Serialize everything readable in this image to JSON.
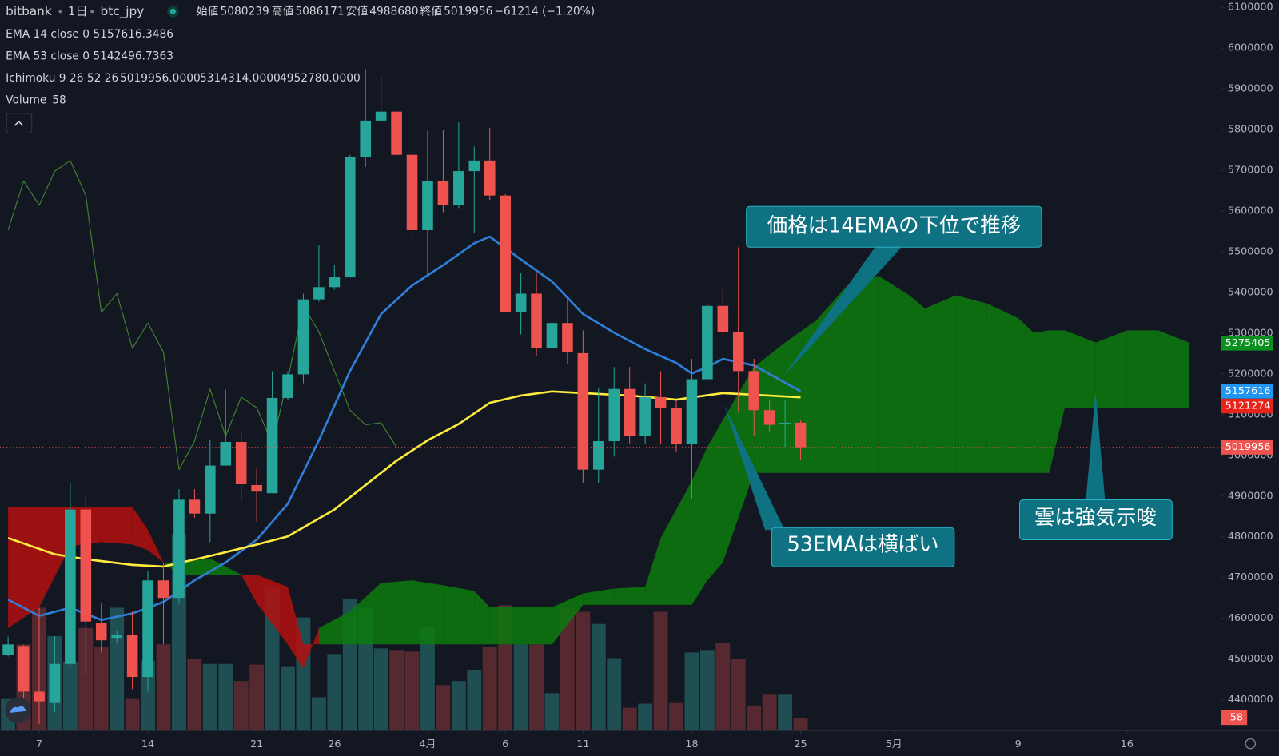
{
  "header": {
    "exchange": "bitbank",
    "interval": "1日",
    "symbol": "btc_jpy",
    "open_label": "始値",
    "open": 5080239,
    "high_label": "高値",
    "high": 5086171,
    "low_label": "安値",
    "low": 4988680,
    "close_label": "終値",
    "close": 5019956,
    "change": "−61214 (−1.20%)",
    "color": "#ef5350"
  },
  "annotations": [
    {
      "text": "価格は14EMAの下位で推移"
    },
    {
      "text": "53EMAは横ばい"
    },
    {
      "text": "雲は強気示唆"
    }
  ],
  "chart_data": {
    "type": "candlestick",
    "x": [
      5,
      6,
      7,
      8,
      9,
      10,
      11,
      12,
      13,
      14,
      15,
      16,
      17,
      18,
      19,
      20,
      21,
      22,
      23,
      24,
      25,
      26,
      27,
      28,
      29,
      30,
      31,
      32,
      33,
      34,
      35,
      36,
      37,
      38,
      39,
      40,
      41,
      42,
      43,
      44,
      45,
      46,
      47,
      48,
      49,
      50,
      51,
      52,
      53,
      54,
      55,
      56
    ],
    "open": [
      4510000,
      4532000,
      4420000,
      4392000,
      4488000,
      4867000,
      4588000,
      4552000,
      4560000,
      4456000,
      4693000,
      4650000,
      4891000,
      4857000,
      4975000,
      5033000,
      4927000,
      4907000,
      5141000,
      5199000,
      5383000,
      5413000,
      5437000,
      5732000,
      5822000,
      5844000,
      5738000,
      5553000,
      5674000,
      5614000,
      5698000,
      5724000,
      5638000,
      5351000,
      5397000,
      5263000,
      5325000,
      5251000,
      4965000,
      5035000,
      5163000,
      5047000,
      5143000,
      5117000,
      5029000,
      5187000,
      5367000,
      5303000,
      5207000,
      5111000,
      5077000,
      5080239
    ],
    "high": [
      4555000,
      4535000,
      4626000,
      4556000,
      4931000,
      4897000,
      4636000,
      4570000,
      4616000,
      4717000,
      4737000,
      4917000,
      4917000,
      5037000,
      5161000,
      5057000,
      4967000,
      5207000,
      5207000,
      5397000,
      5517000,
      5467000,
      5738000,
      5948000,
      5932000,
      5844000,
      5758000,
      5798000,
      5798000,
      5818000,
      5758000,
      5804000,
      5641000,
      5447000,
      5447000,
      5337000,
      5387000,
      5307000,
      5167000,
      5217000,
      5217000,
      5177000,
      5207000,
      5137000,
      5237000,
      5373000,
      5407000,
      5511000,
      5237000,
      5137000,
      5137000,
      5086171
    ],
    "low": [
      4506000,
      4392000,
      4340000,
      4370000,
      4480000,
      4460000,
      4516000,
      4540000,
      4426000,
      4420000,
      4536000,
      4636000,
      4847000,
      4787000,
      4975000,
      4887000,
      4837000,
      4907000,
      5137000,
      5177000,
      5377000,
      5407000,
      5437000,
      5708000,
      5818000,
      5738000,
      5517000,
      5437000,
      5597000,
      5607000,
      5547000,
      5627000,
      5351000,
      5297000,
      5243000,
      5257000,
      5223000,
      4931000,
      4931000,
      4997000,
      5027000,
      5027000,
      5027000,
      5007000,
      4893000,
      5187000,
      5297000,
      5107000,
      5047000,
      5057000,
      5020000,
      4988680
    ],
    "close": [
      4536000,
      4420000,
      4396000,
      4488000,
      4867000,
      4592000,
      4546000,
      4560000,
      4456000,
      4693000,
      4650000,
      4891000,
      4857000,
      4975000,
      5033000,
      4929000,
      4911000,
      5141000,
      5199000,
      5383000,
      5413000,
      5437000,
      5732000,
      5822000,
      5844000,
      5738000,
      5553000,
      5674000,
      5614000,
      5698000,
      5724000,
      5638000,
      5351000,
      5397000,
      5263000,
      5325000,
      5253000,
      4965000,
      5035000,
      5163000,
      5047000,
      5143000,
      5117000,
      5029000,
      5187000,
      5367000,
      5303000,
      5207000,
      5111000,
      5075000,
      5080239,
      5019956
    ],
    "up_color": "#26a69a",
    "down_color": "#ef5350",
    "xlim": [
      4.48,
      83.06
    ],
    "xticks": [
      7,
      14,
      21,
      26,
      {
        "value": 32,
        "label": "4月"
      },
      {
        "value": 37,
        "label": "6"
      },
      {
        "value": 42,
        "label": "11"
      },
      {
        "value": 49,
        "label": "18"
      },
      {
        "value": 56,
        "label": "25"
      },
      {
        "value": 62,
        "label": "5月"
      },
      {
        "value": 70,
        "label": "9"
      },
      {
        "value": 77,
        "label": "16"
      }
    ],
    "ylim": [
      4324000,
      6118000
    ],
    "yticks": [
      4400000,
      4500000,
      4600000,
      4700000,
      4800000,
      4900000,
      5000000,
      5100000,
      5200000,
      5300000,
      5400000,
      5500000,
      5600000,
      5700000,
      5800000,
      5900000,
      6000000,
      6100000
    ],
    "grid": false,
    "series": [
      {
        "name": "EMA 14 close 0",
        "color": "#2f7fd8",
        "x": [
          5,
          7,
          9,
          11,
          13,
          15,
          17,
          19,
          21,
          23,
          25,
          27,
          29,
          31,
          33,
          35,
          36,
          38,
          40,
          42,
          44,
          46,
          48,
          49,
          50,
          51,
          53,
          56
        ],
        "values": [
          4646000,
          4606000,
          4626000,
          4596000,
          4612000,
          4640000,
          4693000,
          4737000,
          4793000,
          4881000,
          5037000,
          5207000,
          5347000,
          5417000,
          5467000,
          5521000,
          5537000,
          5481000,
          5427000,
          5347000,
          5301000,
          5261000,
          5227000,
          5201000,
          5217000,
          5237000,
          5221000,
          5157616.3486
        ]
      },
      {
        "name": "EMA 53 close 0",
        "color": "#ffeb3b",
        "x": [
          5,
          8,
          10,
          13,
          15,
          18,
          21,
          23,
          26,
          30,
          32,
          34,
          36,
          38,
          40,
          42,
          45,
          48,
          51,
          53,
          56
        ],
        "values": [
          4797000,
          4757000,
          4745000,
          4731000,
          4727000,
          4753000,
          4781000,
          4801000,
          4867000,
          4987000,
          5037000,
          5077000,
          5129000,
          5147000,
          5157000,
          5153000,
          5147000,
          5137000,
          5153000,
          5149000,
          5142496.7363
        ]
      }
    ],
    "ichimoku": {
      "name": "Ichimoku 9 26 52 26",
      "value_labels": [
        "5019956.0000",
        "5314314.0000",
        "4952780.0000"
      ],
      "label_colors": [
        "#4caf50",
        "#2e8b2e",
        "#e8231a"
      ],
      "lagging_color": "#3f7d32",
      "lagging_x": [
        5,
        6,
        7,
        8,
        9,
        10,
        11,
        12,
        13,
        14,
        15,
        16,
        17,
        18,
        19,
        20,
        21,
        22,
        23,
        24,
        25,
        26,
        27,
        28,
        29,
        30
      ],
      "lagging": [
        5553000,
        5674000,
        5614000,
        5698000,
        5724000,
        5638000,
        5351000,
        5397000,
        5263000,
        5325000,
        5253000,
        4965000,
        5035000,
        5163000,
        5047000,
        5143000,
        5117000,
        5029000,
        5187000,
        5367000,
        5303000,
        5207000,
        5111000,
        5075000,
        5080239,
        5019956
      ],
      "cloud_x": [
        5,
        7,
        9,
        11,
        13,
        14,
        15,
        16,
        18,
        20,
        21,
        23,
        24,
        25,
        27,
        29,
        31,
        33,
        35,
        36,
        40,
        42,
        44,
        46,
        47,
        49,
        50,
        51,
        53,
        55,
        57,
        59,
        61,
        63,
        64,
        66,
        68,
        70,
        71,
        72,
        73,
        75,
        77,
        79,
        81
      ],
      "span_a": [
        4576000,
        4627000,
        4777000,
        4787000,
        4781000,
        4767000,
        4737000,
        4737000,
        4747000,
        4707000,
        4637000,
        4536000,
        4476000,
        4576000,
        4617000,
        4687000,
        4693000,
        4681000,
        4667000,
        4627000,
        4627000,
        4661000,
        4673000,
        4677000,
        4797000,
        4937000,
        5021000,
        5087000,
        5217000,
        5277000,
        5331000,
        5417000,
        5441000,
        5393000,
        5361000,
        5393000,
        5373000,
        5337000,
        5301000,
        5307000,
        5307000,
        5277000,
        5307000,
        5307000,
        5277000
      ],
      "span_b": [
        4873000,
        4873000,
        4873000,
        4873000,
        4873000,
        4817000,
        4737000,
        4707000,
        4707000,
        4707000,
        4707000,
        4677000,
        4536000,
        4536000,
        4536000,
        4536000,
        4536000,
        4536000,
        4536000,
        4536000,
        4536000,
        4633000,
        4633000,
        4633000,
        4633000,
        4633000,
        4693000,
        4737000,
        4957000,
        4957000,
        4957000,
        4957000,
        4957000,
        4957000,
        4957000,
        4957000,
        4957000,
        4957000,
        4957000,
        4957000,
        5117000,
        5117000,
        5117000,
        5117000,
        5117000
      ],
      "bull_color": "#0d7a0d",
      "bear_color": "#b30f0f"
    },
    "volume": {
      "name": "Volume",
      "up_color": "#1f4f52",
      "down_color": "#55292f",
      "values": [
        141,
        384,
        547,
        421,
        305,
        457,
        373,
        547,
        141,
        312,
        384,
        874,
        319,
        297,
        297,
        221,
        294,
        638,
        283,
        504,
        149,
        341,
        584,
        547,
        366,
        359,
        352,
        464,
        203,
        221,
        268,
        373,
        558,
        384,
        384,
        167,
        547,
        529,
        475,
        323,
        102,
        120,
        529,
        123,
        348,
        359,
        392,
        319,
        112,
        160,
        160,
        58
      ]
    },
    "price_tags": [
      {
        "value": 5275405,
        "color": "#0b8f1e"
      },
      {
        "value": 5121274,
        "color": "#e8231a"
      },
      {
        "value": 5157616,
        "color": "#2196f3"
      },
      {
        "value": 5019956,
        "color": "#ef5350"
      }
    ]
  }
}
